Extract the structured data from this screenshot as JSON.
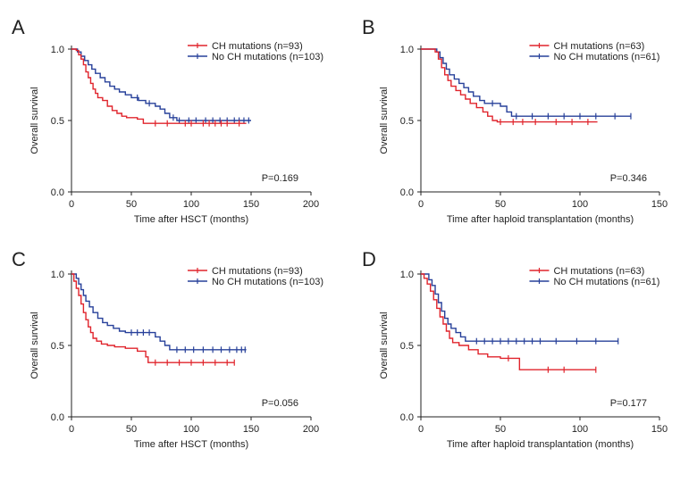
{
  "figure": {
    "colors": {
      "ch": "#e0242c",
      "noch": "#27409a",
      "axis": "#222222"
    },
    "legend": [
      "CH mutations",
      "No CH mutations"
    ]
  },
  "chart_data": [
    {
      "panel": "A",
      "type": "line",
      "xlabel": "Time after HSCT (months)",
      "ylabel": "Overall survival",
      "xlim": [
        0,
        200
      ],
      "ylim": [
        0,
        1.0
      ],
      "xticks": [
        0,
        50,
        100,
        150,
        200
      ],
      "yticks": [
        0.0,
        0.5,
        1.0
      ],
      "legend_placement": "top-right",
      "pvalue": "P=0.169",
      "series": [
        {
          "name": "CH mutations (n=93)",
          "key": "ch",
          "steps": [
            [
              0,
              1.0
            ],
            [
              4,
              0.99
            ],
            [
              6,
              0.96
            ],
            [
              8,
              0.93
            ],
            [
              10,
              0.89
            ],
            [
              12,
              0.84
            ],
            [
              14,
              0.8
            ],
            [
              16,
              0.76
            ],
            [
              18,
              0.72
            ],
            [
              20,
              0.69
            ],
            [
              22,
              0.66
            ],
            [
              26,
              0.64
            ],
            [
              30,
              0.6
            ],
            [
              34,
              0.57
            ],
            [
              38,
              0.55
            ],
            [
              42,
              0.53
            ],
            [
              46,
              0.52
            ],
            [
              55,
              0.51
            ],
            [
              60,
              0.48
            ],
            [
              146,
              0.48
            ]
          ],
          "censor": [
            70,
            80,
            95,
            100,
            110,
            115,
            120,
            125,
            130,
            140
          ]
        },
        {
          "name": "No CH mutations (n=103)",
          "key": "noch",
          "steps": [
            [
              0,
              1.0
            ],
            [
              5,
              0.98
            ],
            [
              8,
              0.95
            ],
            [
              11,
              0.92
            ],
            [
              14,
              0.89
            ],
            [
              17,
              0.86
            ],
            [
              20,
              0.83
            ],
            [
              24,
              0.8
            ],
            [
              28,
              0.77
            ],
            [
              32,
              0.74
            ],
            [
              36,
              0.72
            ],
            [
              40,
              0.7
            ],
            [
              45,
              0.68
            ],
            [
              50,
              0.66
            ],
            [
              56,
              0.64
            ],
            [
              62,
              0.62
            ],
            [
              70,
              0.6
            ],
            [
              74,
              0.58
            ],
            [
              78,
              0.55
            ],
            [
              82,
              0.52
            ],
            [
              88,
              0.5
            ],
            [
              150,
              0.5
            ]
          ],
          "censor": [
            55,
            65,
            85,
            90,
            98,
            104,
            112,
            118,
            124,
            130,
            136,
            140,
            144,
            148
          ]
        }
      ]
    },
    {
      "panel": "B",
      "type": "line",
      "xlabel": "Time after haploid transplantation (months)",
      "ylabel": "Overall survival",
      "xlim": [
        0,
        150
      ],
      "ylim": [
        0,
        1.0
      ],
      "xticks": [
        0,
        50,
        100,
        150
      ],
      "yticks": [
        0.0,
        0.5,
        1.0
      ],
      "legend_placement": "top-right",
      "pvalue": "P=0.346",
      "series": [
        {
          "name": "CH mutations (n=63)",
          "key": "ch",
          "steps": [
            [
              0,
              1.0
            ],
            [
              9,
              0.98
            ],
            [
              11,
              0.93
            ],
            [
              13,
              0.87
            ],
            [
              15,
              0.82
            ],
            [
              17,
              0.78
            ],
            [
              19,
              0.74
            ],
            [
              22,
              0.71
            ],
            [
              25,
              0.68
            ],
            [
              28,
              0.65
            ],
            [
              31,
              0.62
            ],
            [
              35,
              0.59
            ],
            [
              39,
              0.56
            ],
            [
              42,
              0.53
            ],
            [
              45,
              0.5
            ],
            [
              48,
              0.49
            ],
            [
              111,
              0.49
            ]
          ],
          "censor": [
            50,
            58,
            64,
            72,
            85,
            95,
            105
          ]
        },
        {
          "name": "No CH mutations (n=61)",
          "key": "noch",
          "steps": [
            [
              0,
              1.0
            ],
            [
              10,
              0.98
            ],
            [
              12,
              0.94
            ],
            [
              14,
              0.9
            ],
            [
              16,
              0.86
            ],
            [
              18,
              0.82
            ],
            [
              21,
              0.79
            ],
            [
              24,
              0.76
            ],
            [
              27,
              0.73
            ],
            [
              30,
              0.7
            ],
            [
              33,
              0.67
            ],
            [
              37,
              0.64
            ],
            [
              40,
              0.62
            ],
            [
              50,
              0.6
            ],
            [
              54,
              0.56
            ],
            [
              57,
              0.53
            ],
            [
              132,
              0.53
            ]
          ],
          "censor": [
            45,
            60,
            70,
            80,
            90,
            100,
            110,
            122,
            132
          ]
        }
      ]
    },
    {
      "panel": "C",
      "type": "line",
      "xlabel": "Time after HSCT (months)",
      "ylabel": "Overall survival",
      "xlim": [
        0,
        200
      ],
      "ylim": [
        0,
        1.0
      ],
      "xticks": [
        0,
        50,
        100,
        150,
        200
      ],
      "yticks": [
        0.0,
        0.5,
        1.0
      ],
      "legend_placement": "top-right",
      "pvalue": "P=0.056",
      "series": [
        {
          "name": "CH mutations (n=93)",
          "key": "ch",
          "steps": [
            [
              0,
              1.0
            ],
            [
              2,
              0.95
            ],
            [
              4,
              0.9
            ],
            [
              6,
              0.85
            ],
            [
              8,
              0.79
            ],
            [
              10,
              0.73
            ],
            [
              12,
              0.68
            ],
            [
              14,
              0.63
            ],
            [
              16,
              0.59
            ],
            [
              18,
              0.55
            ],
            [
              21,
              0.53
            ],
            [
              25,
              0.51
            ],
            [
              30,
              0.5
            ],
            [
              36,
              0.49
            ],
            [
              45,
              0.48
            ],
            [
              55,
              0.46
            ],
            [
              62,
              0.42
            ],
            [
              64,
              0.38
            ],
            [
              136,
              0.38
            ]
          ],
          "censor": [
            70,
            80,
            90,
            100,
            110,
            120,
            130,
            136
          ]
        },
        {
          "name": "No CH mutations (n=103)",
          "key": "noch",
          "steps": [
            [
              0,
              1.0
            ],
            [
              4,
              0.97
            ],
            [
              6,
              0.93
            ],
            [
              8,
              0.89
            ],
            [
              10,
              0.85
            ],
            [
              12,
              0.81
            ],
            [
              15,
              0.77
            ],
            [
              18,
              0.73
            ],
            [
              22,
              0.69
            ],
            [
              26,
              0.66
            ],
            [
              30,
              0.64
            ],
            [
              35,
              0.62
            ],
            [
              40,
              0.6
            ],
            [
              45,
              0.59
            ],
            [
              70,
              0.56
            ],
            [
              74,
              0.53
            ],
            [
              78,
              0.5
            ],
            [
              82,
              0.47
            ],
            [
              146,
              0.47
            ]
          ],
          "censor": [
            50,
            55,
            60,
            65,
            88,
            95,
            102,
            110,
            118,
            125,
            132,
            138,
            142,
            145
          ]
        }
      ]
    },
    {
      "panel": "D",
      "type": "line",
      "xlabel": "Time after haploid transplantation (months)",
      "ylabel": "Overall survival",
      "xlim": [
        0,
        150
      ],
      "ylim": [
        0,
        1.0
      ],
      "xticks": [
        0,
        50,
        100,
        150
      ],
      "yticks": [
        0.0,
        0.5,
        1.0
      ],
      "legend_placement": "top-right",
      "pvalue": "P=0.177",
      "series": [
        {
          "name": "CH mutations (n=63)",
          "key": "ch",
          "steps": [
            [
              0,
              1.0
            ],
            [
              2,
              0.97
            ],
            [
              4,
              0.93
            ],
            [
              6,
              0.88
            ],
            [
              8,
              0.82
            ],
            [
              10,
              0.76
            ],
            [
              12,
              0.7
            ],
            [
              14,
              0.65
            ],
            [
              16,
              0.6
            ],
            [
              18,
              0.55
            ],
            [
              20,
              0.52
            ],
            [
              24,
              0.5
            ],
            [
              30,
              0.47
            ],
            [
              36,
              0.44
            ],
            [
              42,
              0.42
            ],
            [
              50,
              0.41
            ],
            [
              62,
              0.33
            ],
            [
              110,
              0.33
            ]
          ],
          "censor": [
            55,
            80,
            90,
            110
          ]
        },
        {
          "name": "No CH mutations (n=61)",
          "key": "noch",
          "steps": [
            [
              0,
              1.0
            ],
            [
              5,
              0.96
            ],
            [
              7,
              0.92
            ],
            [
              9,
              0.86
            ],
            [
              11,
              0.8
            ],
            [
              13,
              0.74
            ],
            [
              15,
              0.69
            ],
            [
              17,
              0.65
            ],
            [
              19,
              0.62
            ],
            [
              22,
              0.59
            ],
            [
              25,
              0.56
            ],
            [
              28,
              0.53
            ],
            [
              124,
              0.53
            ]
          ],
          "censor": [
            35,
            40,
            45,
            50,
            55,
            60,
            65,
            70,
            75,
            85,
            98,
            110,
            124
          ]
        }
      ]
    }
  ]
}
